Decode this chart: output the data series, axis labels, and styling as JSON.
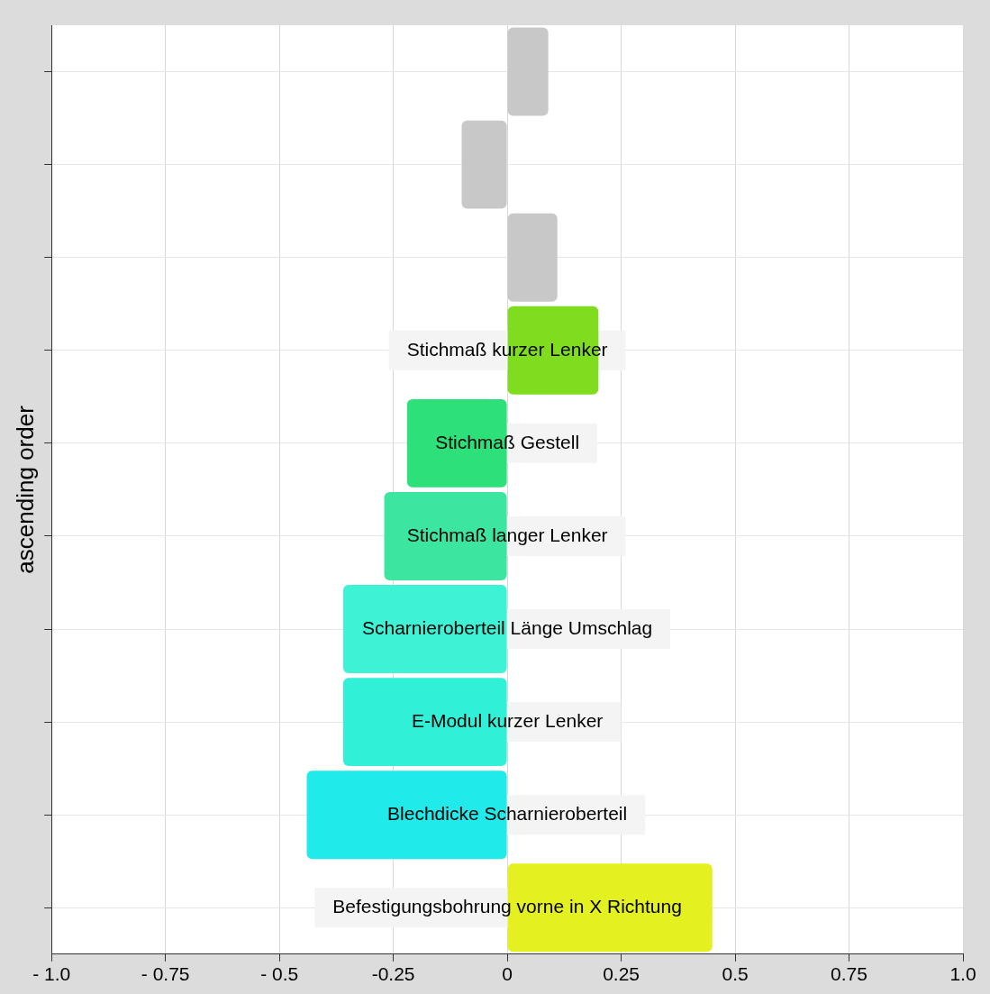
{
  "chart_data": {
    "type": "bar",
    "orientation": "horizontal",
    "ylabel": "ascending order",
    "categories": [
      null,
      null,
      null,
      "Stichmaß kurzer Lenker",
      "Stichmaß Gestell",
      "Stichmaß langer Lenker",
      "Scharnieroberteil Länge Umschlag",
      "E-Modul kurzer Lenker",
      "Blechdicke Scharnieroberteil",
      "Befestigungsbohrung vorne in X Richtung"
    ],
    "values": [
      0.09,
      -0.1,
      0.11,
      0.2,
      -0.22,
      -0.27,
      -0.36,
      -0.36,
      -0.44,
      0.45
    ],
    "colors": [
      "#c8c8c8",
      "#c8c8c8",
      "#c8c8c8",
      "#7fdc1e",
      "#2ee07a",
      "#3de6a0",
      "#3ef2d6",
      "#30f0d8",
      "#20eaea",
      "#e4f020"
    ],
    "xlim": [
      -1,
      1
    ],
    "xticks": [
      {
        "value": -1,
        "label": "- 1.0"
      },
      {
        "value": -0.75,
        "label": "- 0.75"
      },
      {
        "value": -0.5,
        "label": "- 0.5"
      },
      {
        "value": -0.25,
        "label": "-0.25"
      },
      0,
      0.25,
      0.5,
      0.75,
      {
        "value": 1,
        "label": "1.0"
      }
    ],
    "grid": true,
    "tick_labels": "x"
  }
}
